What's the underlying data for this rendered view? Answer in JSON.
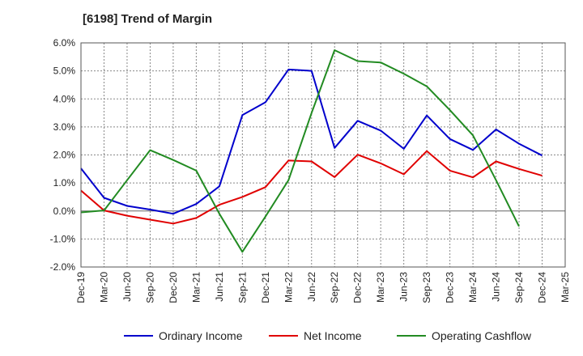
{
  "chart_data": {
    "type": "line",
    "title": "[6198]  Trend of Margin",
    "ylim": [
      -2.0,
      6.0
    ],
    "yticks": [
      "-2.0%",
      "-1.0%",
      "0.0%",
      "1.0%",
      "2.0%",
      "3.0%",
      "4.0%",
      "5.0%",
      "6.0%"
    ],
    "ytick_values": [
      -2,
      -1,
      0,
      1,
      2,
      3,
      4,
      5,
      6
    ],
    "x": [
      "Dec-19",
      "Mar-20",
      "Jun-20",
      "Sep-20",
      "Dec-20",
      "Mar-21",
      "Jun-21",
      "Sep-21",
      "Dec-21",
      "Mar-22",
      "Jun-22",
      "Sep-22",
      "Dec-22",
      "Mar-23",
      "Jun-23",
      "Sep-23",
      "Dec-23",
      "Mar-24",
      "Jun-24",
      "Sep-24",
      "Dec-24",
      "Mar-25"
    ],
    "grid": true,
    "legend_position": "bottom",
    "series": [
      {
        "name": "Ordinary Income",
        "color": "#0000cc",
        "values": [
          1.52,
          0.47,
          0.18,
          0.05,
          -0.1,
          0.25,
          0.88,
          3.42,
          3.88,
          5.05,
          5.0,
          2.25,
          3.22,
          2.87,
          2.22,
          3.41,
          2.57,
          2.18,
          2.91,
          2.4,
          1.98,
          null
        ]
      },
      {
        "name": "Net Income",
        "color": "#e00000",
        "values": [
          0.73,
          0.02,
          -0.17,
          -0.31,
          -0.45,
          -0.25,
          0.22,
          0.5,
          0.85,
          1.8,
          1.77,
          1.21,
          2.01,
          1.7,
          1.31,
          2.14,
          1.44,
          1.2,
          1.77,
          1.5,
          1.26,
          null
        ]
      },
      {
        "name": "Operating Cashflow",
        "color": "#228b22",
        "values": [
          -0.05,
          0.02,
          1.1,
          2.17,
          1.82,
          1.44,
          -0.1,
          -1.46,
          -0.2,
          1.1,
          3.5,
          5.74,
          5.35,
          5.3,
          4.9,
          4.45,
          3.6,
          2.7,
          1.1,
          -0.55,
          null,
          null
        ]
      }
    ]
  }
}
